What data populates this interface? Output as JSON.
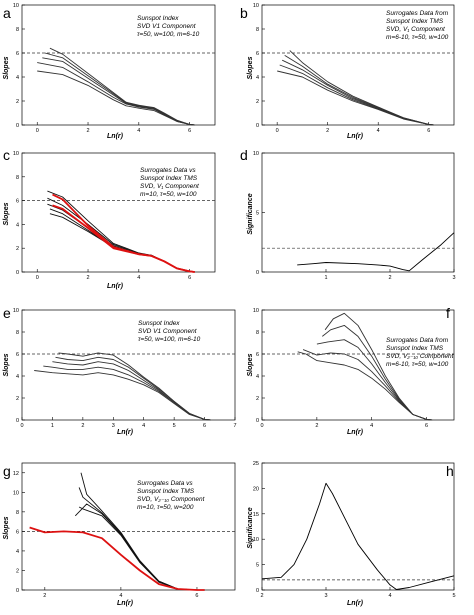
{
  "chart_data": [
    {
      "panel": "a",
      "type": "line",
      "annotation": [
        "Sunspot Index",
        "SVD V1 Component",
        "τ=50, w=100, m=6-10"
      ],
      "xlabel": "Ln(r)",
      "ylabel": "Slopes",
      "xlim": [
        -0.6,
        7
      ],
      "ylim": [
        0,
        10
      ],
      "xticks": [
        0,
        2,
        4,
        6
      ],
      "yticks": [
        0,
        2,
        4,
        6,
        8,
        10
      ],
      "reference_line": 6,
      "grid": false,
      "series": [
        {
          "color": "#333333",
          "x": [
            0,
            1,
            2,
            3,
            3.5,
            4,
            4.3,
            4.6,
            5,
            5.5,
            6,
            6.2
          ],
          "y": [
            4.5,
            4.2,
            3.3,
            2.1,
            1.6,
            1.4,
            1.3,
            1.2,
            0.8,
            0.3,
            0.05,
            0
          ]
        },
        {
          "color": "#333333",
          "x": [
            0,
            1,
            2,
            3,
            3.5,
            4,
            4.3,
            4.6,
            5,
            5.5,
            6,
            6.2
          ],
          "y": [
            5.2,
            4.8,
            3.6,
            2.3,
            1.75,
            1.5,
            1.4,
            1.3,
            0.85,
            0.3,
            0.05,
            0
          ]
        },
        {
          "color": "#333333",
          "x": [
            0.2,
            1,
            2,
            3,
            3.5,
            4,
            4.3,
            4.6,
            5,
            5.5,
            6,
            6.2
          ],
          "y": [
            5.6,
            5.3,
            3.9,
            2.5,
            1.8,
            1.55,
            1.45,
            1.35,
            0.9,
            0.35,
            0.05,
            0
          ]
        },
        {
          "color": "#333333",
          "x": [
            0.3,
            1,
            2,
            3,
            3.5,
            4,
            4.3,
            4.6,
            5,
            5.5,
            6,
            6.2
          ],
          "y": [
            6.0,
            5.6,
            4.1,
            2.6,
            1.85,
            1.6,
            1.5,
            1.4,
            0.95,
            0.35,
            0.05,
            0
          ]
        },
        {
          "color": "#333333",
          "x": [
            0.5,
            1,
            2,
            3,
            3.5,
            4,
            4.3,
            4.6,
            5,
            5.5,
            6,
            6.2
          ],
          "y": [
            6.4,
            5.9,
            4.3,
            2.7,
            1.9,
            1.65,
            1.55,
            1.45,
            1.0,
            0.4,
            0.05,
            0
          ]
        }
      ]
    },
    {
      "panel": "b",
      "type": "line",
      "annotation": [
        "Surrogates Data from",
        "Sunspot Index TMS",
        "SVD, V₁ Component",
        "m=6-10, τ=50, w=100"
      ],
      "xlabel": "Ln(r)",
      "ylabel": "Slopes",
      "xlim": [
        -0.6,
        7
      ],
      "ylim": [
        0,
        10
      ],
      "xticks": [
        0,
        2,
        4,
        6
      ],
      "yticks": [
        0,
        2,
        4,
        6,
        8,
        10
      ],
      "reference_line": 6,
      "grid": false,
      "series": [
        {
          "color": "#333333",
          "x": [
            0,
            1,
            2,
            3,
            4,
            5,
            6,
            6.2
          ],
          "y": [
            4.5,
            4.0,
            2.9,
            2.0,
            1.3,
            0.5,
            0.05,
            0
          ]
        },
        {
          "color": "#333333",
          "x": [
            0.1,
            1,
            2,
            3,
            4,
            5,
            6,
            6.2
          ],
          "y": [
            5.0,
            4.3,
            3.1,
            2.1,
            1.35,
            0.55,
            0.05,
            0
          ]
        },
        {
          "color": "#333333",
          "x": [
            0.2,
            1,
            2,
            3,
            4,
            5,
            6,
            6.2
          ],
          "y": [
            5.4,
            4.6,
            3.3,
            2.2,
            1.4,
            0.55,
            0.05,
            0
          ]
        },
        {
          "color": "#333333",
          "x": [
            0.3,
            1,
            2,
            3,
            4,
            5,
            6,
            6.2
          ],
          "y": [
            5.8,
            4.9,
            3.4,
            2.3,
            1.45,
            0.6,
            0.05,
            0
          ]
        },
        {
          "color": "#333333",
          "x": [
            0.5,
            1,
            2,
            3,
            4,
            5,
            6,
            6.2
          ],
          "y": [
            6.2,
            5.2,
            3.6,
            2.4,
            1.5,
            0.6,
            0.05,
            0
          ]
        }
      ]
    },
    {
      "panel": "c",
      "type": "line",
      "annotation": [
        "Surrogates Data vs",
        "Sunspot Index TMS",
        "SVD, V₁ Component",
        "m=10, τ=50, w=100"
      ],
      "xlabel": "Ln(r)",
      "ylabel": "Slopes",
      "xlim": [
        -0.6,
        7
      ],
      "ylim": [
        0,
        10
      ],
      "xticks": [
        0,
        2,
        4,
        6
      ],
      "yticks": [
        0,
        2,
        4,
        6,
        8,
        10
      ],
      "reference_line": 6,
      "grid": false,
      "series": [
        {
          "color": "#111111",
          "x": [
            0.4,
            1,
            2,
            3,
            4,
            4.5,
            5,
            5.5,
            6,
            6.2
          ],
          "y": [
            6.8,
            6.3,
            4.3,
            2.4,
            1.6,
            1.4,
            0.9,
            0.3,
            0.05,
            0
          ]
        },
        {
          "color": "#111111",
          "x": [
            0.4,
            1,
            2,
            3,
            4,
            4.5,
            5,
            5.5,
            6,
            6.2
          ],
          "y": [
            6.2,
            5.6,
            4.0,
            2.3,
            1.55,
            1.4,
            0.9,
            0.3,
            0.05,
            0
          ]
        },
        {
          "color": "#111111",
          "x": [
            0.4,
            1,
            2,
            3,
            4,
            4.5,
            5,
            5.5,
            6,
            6.2
          ],
          "y": [
            5.7,
            5.2,
            3.7,
            2.2,
            1.5,
            1.4,
            0.9,
            0.3,
            0.05,
            0
          ]
        },
        {
          "color": "#111111",
          "x": [
            0.5,
            1,
            2,
            3,
            4,
            4.5,
            5,
            5.5,
            6,
            6.2
          ],
          "y": [
            5.3,
            4.9,
            3.5,
            2.1,
            1.5,
            1.35,
            0.9,
            0.3,
            0.05,
            0
          ]
        },
        {
          "color": "#111111",
          "x": [
            0.5,
            1,
            2,
            3,
            4,
            4.5,
            5,
            5.5,
            6,
            6.2
          ],
          "y": [
            4.9,
            4.6,
            3.4,
            2.1,
            1.5,
            1.35,
            0.9,
            0.3,
            0.05,
            0
          ]
        },
        {
          "color": "#dd1111",
          "x": [
            0.6,
            1,
            2,
            3,
            4,
            4.5,
            5,
            5.5,
            6,
            6.2
          ],
          "y": [
            6.5,
            6.1,
            3.9,
            2.1,
            1.5,
            1.35,
            0.9,
            0.3,
            0.05,
            0
          ]
        },
        {
          "color": "#dd1111",
          "x": [
            0.6,
            1,
            2,
            3,
            4,
            4.5,
            5,
            5.5,
            6,
            6.2
          ],
          "y": [
            5.6,
            5.3,
            3.7,
            2.0,
            1.5,
            1.35,
            0.9,
            0.3,
            0.05,
            0
          ]
        }
      ]
    },
    {
      "panel": "d",
      "type": "line",
      "xlabel": "",
      "ylabel": "Significance",
      "xlim": [
        0,
        3
      ],
      "ylim": [
        0,
        10
      ],
      "xticks": [
        1,
        2,
        3
      ],
      "yticks": [
        0,
        5,
        10
      ],
      "reference_line": 2,
      "grid": false,
      "series": [
        {
          "color": "#000000",
          "x": [
            0.55,
            0.8,
            1,
            1.5,
            1.8,
            2,
            2.2,
            2.3,
            2.5,
            2.8,
            3
          ],
          "y": [
            0.6,
            0.7,
            0.8,
            0.7,
            0.6,
            0.5,
            0.2,
            0.1,
            1.0,
            2.3,
            3.3
          ]
        }
      ]
    },
    {
      "panel": "e",
      "type": "line",
      "annotation": [
        "Sunspot Index",
        "SVD V1 Component",
        "τ=50, w=100, m=6-10"
      ],
      "xlabel": "Ln(r)",
      "ylabel": "Slopes",
      "xlim": [
        0,
        7
      ],
      "ylim": [
        0,
        10
      ],
      "xticks": [
        0,
        1,
        2,
        3,
        4,
        5,
        6,
        7
      ],
      "yticks": [
        0,
        2,
        4,
        6,
        8,
        10
      ],
      "reference_line": 6,
      "grid": false,
      "series": [
        {
          "color": "#333333",
          "x": [
            0.4,
            1,
            1.5,
            2,
            2.5,
            3,
            3.5,
            4,
            4.5,
            5,
            5.5,
            6,
            6.2
          ],
          "y": [
            4.5,
            4.3,
            4.2,
            4.1,
            4.3,
            4.1,
            3.7,
            3.2,
            2.5,
            1.5,
            0.5,
            0.05,
            0
          ]
        },
        {
          "color": "#333333",
          "x": [
            0.7,
            1,
            1.5,
            2,
            2.5,
            3,
            3.5,
            4,
            4.5,
            5,
            5.5,
            6,
            6.2
          ],
          "y": [
            4.9,
            4.8,
            4.6,
            4.6,
            4.8,
            4.6,
            4.1,
            3.4,
            2.6,
            1.6,
            0.55,
            0.05,
            0
          ]
        },
        {
          "color": "#333333",
          "x": [
            1.0,
            1.5,
            2,
            2.5,
            3,
            3.5,
            4,
            4.5,
            5,
            5.5,
            6,
            6.2
          ],
          "y": [
            5.3,
            5.1,
            5.0,
            5.3,
            5.1,
            4.5,
            3.6,
            2.7,
            1.6,
            0.55,
            0.05,
            0
          ]
        },
        {
          "color": "#333333",
          "x": [
            1.1,
            1.5,
            2,
            2.5,
            3,
            3.5,
            4,
            4.5,
            5,
            5.5,
            6,
            6.2
          ],
          "y": [
            5.7,
            5.5,
            5.4,
            5.7,
            5.5,
            4.8,
            3.8,
            2.8,
            1.7,
            0.6,
            0.05,
            0
          ]
        },
        {
          "color": "#333333",
          "x": [
            1.2,
            1.5,
            2,
            2.5,
            3,
            3.5,
            4,
            4.5,
            5,
            5.5,
            6,
            6.2
          ],
          "y": [
            6.1,
            6.0,
            5.8,
            6.1,
            5.9,
            5.0,
            3.9,
            2.9,
            1.7,
            0.6,
            0.05,
            0
          ]
        }
      ]
    },
    {
      "panel": "f",
      "type": "line",
      "annotation": [
        "Surrogates Data from",
        "Sunspot Index TMS",
        "SVD, V₂₋₁₀ Component",
        "m=6-10, τ=50, w=100"
      ],
      "xlabel": "Ln(r)",
      "ylabel": "Slopes",
      "xlim": [
        0,
        7
      ],
      "ylim": [
        0,
        10
      ],
      "xticks": [
        0,
        2,
        4,
        6
      ],
      "yticks": [
        0,
        2,
        4,
        6,
        8,
        10
      ],
      "reference_line": 6,
      "grid": false,
      "series": [
        {
          "color": "#333333",
          "x": [
            1.3,
            1.6,
            2,
            2.5,
            3,
            3.5,
            4,
            4.5,
            5,
            5.5,
            6,
            6.2
          ],
          "y": [
            6.2,
            6.0,
            5.4,
            5.2,
            5.0,
            4.6,
            3.8,
            2.8,
            1.6,
            0.5,
            0.05,
            0
          ]
        },
        {
          "color": "#333333",
          "x": [
            1.5,
            2,
            2.5,
            3,
            3.5,
            4,
            4.5,
            5,
            5.5,
            6,
            6.2
          ],
          "y": [
            6.4,
            5.9,
            6.1,
            6.0,
            5.5,
            4.4,
            3.1,
            1.7,
            0.5,
            0.05,
            0
          ]
        },
        {
          "color": "#333333",
          "x": [
            2.0,
            2.4,
            3,
            3.5,
            4,
            4.5,
            5,
            5.5,
            6,
            6.2
          ],
          "y": [
            6.9,
            7.1,
            7.3,
            6.6,
            5.1,
            3.4,
            1.8,
            0.5,
            0.05,
            0
          ]
        },
        {
          "color": "#333333",
          "x": [
            2.2,
            2.5,
            3,
            3.5,
            4,
            4.5,
            5,
            5.5,
            6,
            6.2
          ],
          "y": [
            7.6,
            8.2,
            8.6,
            7.6,
            5.8,
            3.7,
            1.9,
            0.5,
            0.05,
            0
          ]
        },
        {
          "color": "#333333",
          "x": [
            2.3,
            2.6,
            3,
            3.5,
            4,
            4.5,
            5,
            5.5,
            6,
            6.2
          ],
          "y": [
            8.2,
            9.2,
            9.7,
            8.6,
            6.4,
            4.0,
            2.0,
            0.5,
            0.05,
            0
          ]
        }
      ]
    },
    {
      "panel": "g",
      "type": "line",
      "annotation": [
        "Surrogates Data vs",
        "Sunspot Index TMS",
        "SVD, V₂₋₁₀ Component",
        "m=10, τ=50, w=200"
      ],
      "xlabel": "Ln(r)",
      "ylabel": "Slopes",
      "xlim": [
        1.4,
        7
      ],
      "ylim": [
        0,
        13
      ],
      "xticks": [
        2,
        4,
        6
      ],
      "yticks": [
        0,
        2,
        4,
        6,
        8,
        10,
        12
      ],
      "reference_line": 6,
      "grid": false,
      "series": [
        {
          "color": "#111111",
          "x": [
            2.9,
            3,
            3.5,
            4,
            4.5,
            5,
            5.5,
            6,
            6.2
          ],
          "y": [
            8.5,
            8.3,
            7.6,
            5.6,
            2.8,
            0.8,
            0.1,
            0,
            0
          ]
        },
        {
          "color": "#111111",
          "x": [
            2.9,
            3,
            3.5,
            4,
            4.5,
            5,
            5.5,
            6,
            6.2
          ],
          "y": [
            10.5,
            9.5,
            7.9,
            5.8,
            2.9,
            0.9,
            0.1,
            0,
            0
          ]
        },
        {
          "color": "#111111",
          "x": [
            2.95,
            3.1,
            3.5,
            4,
            4.5,
            5,
            5.5,
            6,
            6.2
          ],
          "y": [
            12.0,
            9.8,
            8.1,
            5.9,
            3.0,
            0.9,
            0.1,
            0,
            0
          ]
        },
        {
          "color": "#111111",
          "x": [
            2.8,
            3.1,
            3.5,
            4,
            4.5,
            5,
            5.5,
            6,
            6.2
          ],
          "y": [
            7.6,
            8.8,
            7.8,
            5.7,
            2.9,
            0.85,
            0.1,
            0,
            0
          ]
        },
        {
          "color": "#dd1111",
          "x": [
            1.6,
            2,
            2.5,
            3,
            3.5,
            4,
            4.5,
            5,
            5.5,
            6,
            6.2
          ],
          "y": [
            6.4,
            5.9,
            6.0,
            5.9,
            5.3,
            3.6,
            2.0,
            0.6,
            0.1,
            0,
            0
          ]
        }
      ]
    },
    {
      "panel": "h",
      "type": "line",
      "xlabel": "Ln(r)",
      "ylabel": "Significance",
      "xlim": [
        2,
        5
      ],
      "ylim": [
        0,
        25
      ],
      "xticks": [
        2,
        3,
        4,
        5
      ],
      "yticks": [
        0,
        5,
        10,
        15,
        20,
        25
      ],
      "reference_line": 2,
      "grid": false,
      "series": [
        {
          "color": "#000000",
          "x": [
            2,
            2.3,
            2.5,
            2.7,
            2.9,
            3,
            3.1,
            3.3,
            3.5,
            3.8,
            4,
            4.1,
            4.3,
            4.6,
            5
          ],
          "y": [
            2.2,
            2.5,
            5,
            10,
            17,
            21,
            19,
            14,
            9,
            4,
            1,
            0.1,
            0.5,
            1.5,
            2.8
          ]
        }
      ]
    }
  ]
}
